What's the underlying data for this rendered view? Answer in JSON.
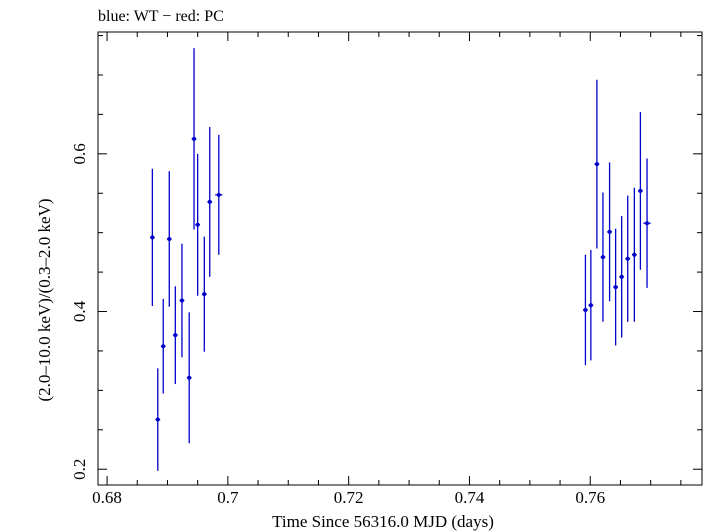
{
  "chart_data": {
    "type": "scatter",
    "title": "blue: WT − red: PC",
    "xlabel": "Time Since 56316.0 MJD (days)",
    "ylabel": "(2.0–10.0 keV)/(0.3–2.0 keV)",
    "xlim": [
      0.6785,
      0.7785
    ],
    "ylim": [
      0.18,
      0.7545
    ],
    "xticks": [
      0.68,
      0.7,
      0.72,
      0.74,
      0.76
    ],
    "xtick_labels": [
      "0.68",
      "0.7",
      "0.72",
      "0.74",
      "0.76"
    ],
    "yticks": [
      0.2,
      0.4,
      0.6
    ],
    "ytick_labels": [
      "0.2",
      "0.4",
      "0.6"
    ],
    "grid": false,
    "series": [
      {
        "color": "#0000cc",
        "points": [
          {
            "x": 0.6875,
            "y": 0.494,
            "yerr": 0.087,
            "xerr": 0.0004
          },
          {
            "x": 0.6884,
            "y": 0.263,
            "yerr": 0.065,
            "xerr": 0.0004
          },
          {
            "x": 0.6893,
            "y": 0.356,
            "yerr": 0.06,
            "xerr": 0.0004
          },
          {
            "x": 0.6903,
            "y": 0.492,
            "yerr": 0.086,
            "xerr": 0.0004
          },
          {
            "x": 0.6913,
            "y": 0.37,
            "yerr": 0.062,
            "xerr": 0.0004
          },
          {
            "x": 0.6924,
            "y": 0.414,
            "yerr": 0.072,
            "xerr": 0.0004
          },
          {
            "x": 0.6936,
            "y": 0.316,
            "yerr": 0.083,
            "xerr": 0.0004
          },
          {
            "x": 0.6944,
            "y": 0.619,
            "yerr": 0.115,
            "xerr": 0.0004
          },
          {
            "x": 0.695,
            "y": 0.51,
            "yerr": 0.09,
            "xerr": 0.0004
          },
          {
            "x": 0.6961,
            "y": 0.422,
            "yerr": 0.073,
            "xerr": 0.0004
          },
          {
            "x": 0.697,
            "y": 0.539,
            "yerr": 0.095,
            "xerr": 0.0004
          },
          {
            "x": 0.6985,
            "y": 0.548,
            "yerr": 0.076,
            "xerr": 0.0006
          },
          {
            "x": 0.7592,
            "y": 0.402,
            "yerr": 0.07,
            "xerr": 0.0004
          },
          {
            "x": 0.7601,
            "y": 0.408,
            "yerr": 0.07,
            "xerr": 0.0004
          },
          {
            "x": 0.7611,
            "y": 0.587,
            "yerr": 0.107,
            "xerr": 0.0004
          },
          {
            "x": 0.7621,
            "y": 0.469,
            "yerr": 0.082,
            "xerr": 0.0004
          },
          {
            "x": 0.7632,
            "y": 0.501,
            "yerr": 0.088,
            "xerr": 0.0004
          },
          {
            "x": 0.7642,
            "y": 0.431,
            "yerr": 0.074,
            "xerr": 0.0004
          },
          {
            "x": 0.7652,
            "y": 0.444,
            "yerr": 0.077,
            "xerr": 0.0004
          },
          {
            "x": 0.7662,
            "y": 0.467,
            "yerr": 0.08,
            "xerr": 0.0004
          },
          {
            "x": 0.7673,
            "y": 0.472,
            "yerr": 0.085,
            "xerr": 0.0004
          },
          {
            "x": 0.7683,
            "y": 0.553,
            "yerr": 0.1,
            "xerr": 0.0004
          },
          {
            "x": 0.7694,
            "y": 0.512,
            "yerr": 0.082,
            "xerr": 0.0006
          }
        ]
      }
    ]
  }
}
